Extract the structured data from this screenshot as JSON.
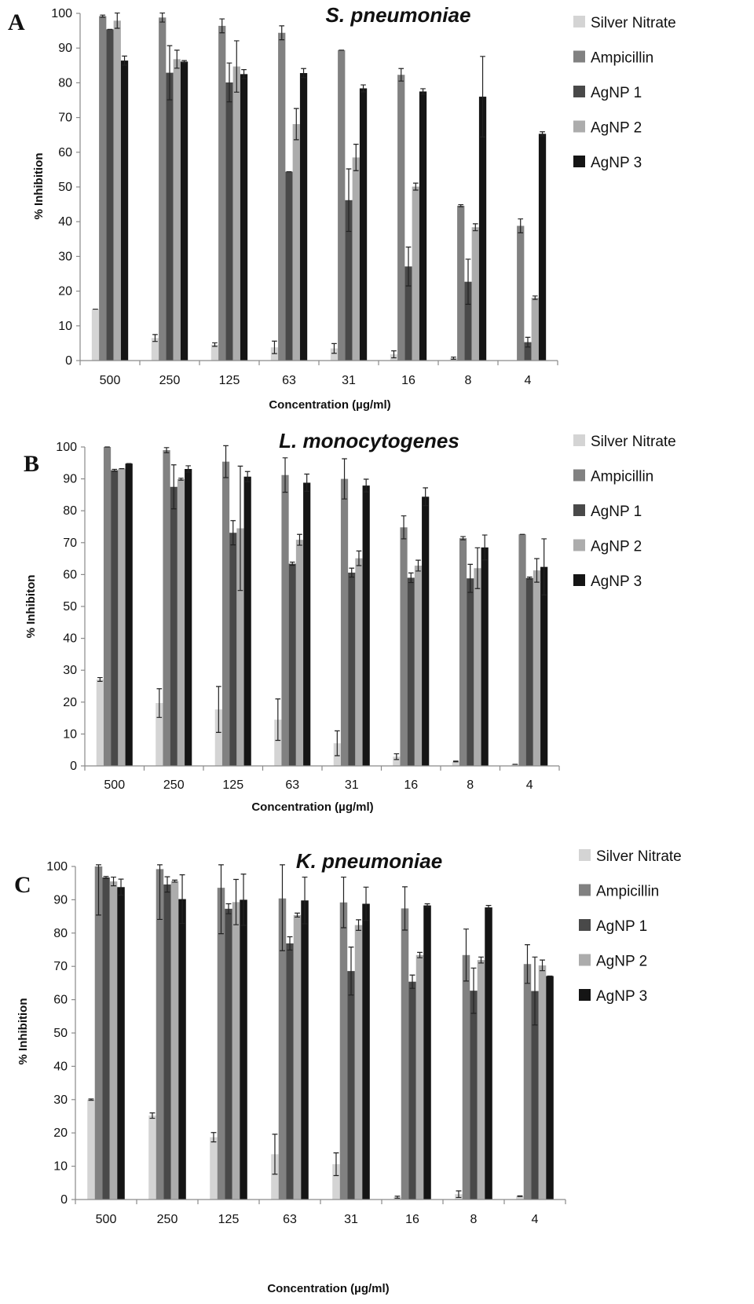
{
  "chart_data": [
    {
      "type": "bar",
      "panel": "A",
      "title": "S. pneumoniae",
      "xlabel": "Concentration (µg/ml)",
      "ylabel": "% Inhibition",
      "ylim": [
        0,
        100
      ],
      "yticks": [
        0,
        10,
        20,
        30,
        40,
        50,
        60,
        70,
        80,
        90,
        100
      ],
      "categories": [
        "500",
        "250",
        "125",
        "63",
        "31",
        "16",
        "8",
        "4"
      ],
      "legend_position": "right",
      "series": [
        {
          "name": "Silver Nitrate",
          "color": "#d4d4d4",
          "values": [
            14.8,
            6.5,
            4.6,
            3.8,
            3.5,
            1.8,
            0.7,
            0
          ],
          "errors": [
            0,
            1,
            0.5,
            1.8,
            1.4,
            1,
            0.3,
            0
          ]
        },
        {
          "name": "Ampicillin",
          "color": "#818181",
          "values": [
            99.2,
            98.8,
            96.4,
            94.4,
            89.4,
            82.3,
            44.6,
            38.8
          ],
          "errors": [
            0.3,
            1.3,
            2,
            2,
            0,
            1.8,
            0.3,
            2
          ]
        },
        {
          "name": "AgNP 1",
          "color": "#494949",
          "values": [
            95.4,
            82.9,
            80.1,
            54.4,
            46.2,
            27.1,
            22.7,
            5.3
          ],
          "errors": [
            0,
            7.8,
            5.6,
            0,
            9,
            5.6,
            6.5,
            1.4
          ]
        },
        {
          "name": "AgNP 2",
          "color": "#acacac",
          "values": [
            97.9,
            86.8,
            84.7,
            68.1,
            58.5,
            50.1,
            38.4,
            18.1
          ],
          "errors": [
            2.2,
            2.6,
            7.4,
            4.5,
            3.8,
            1,
            1,
            0.5
          ]
        },
        {
          "name": "AgNP 3",
          "color": "#151515",
          "values": [
            86.4,
            86.1,
            82.5,
            82.8,
            78.4,
            77.5,
            76,
            65.3
          ],
          "errors": [
            1.3,
            0.3,
            1.3,
            1.3,
            1,
            0.8,
            11.6,
            0.6
          ]
        }
      ]
    },
    {
      "type": "bar",
      "panel": "B",
      "title": "L. monocytogenes",
      "xlabel": "Concentration (µg/ml)",
      "ylabel": "% Inhibiton",
      "ylim": [
        0,
        100
      ],
      "yticks": [
        0,
        10,
        20,
        30,
        40,
        50,
        60,
        70,
        80,
        90,
        100
      ],
      "categories": [
        "500",
        "250",
        "125",
        "63",
        "31",
        "16",
        "8",
        "4"
      ],
      "legend_position": "right",
      "series": [
        {
          "name": "Silver Nitrate",
          "color": "#d4d4d4",
          "values": [
            27.1,
            19.7,
            17.7,
            14.5,
            7.1,
            2.9,
            1.4,
            0.5
          ],
          "errors": [
            0.6,
            4.5,
            7.2,
            6.5,
            3.9,
            0.9,
            0.1,
            0
          ]
        },
        {
          "name": "Ampicillin",
          "color": "#818181",
          "values": [
            100,
            99,
            95.4,
            91.2,
            90,
            74.8,
            71.4,
            72.6
          ],
          "errors": [
            0,
            0.8,
            5,
            5.4,
            6.3,
            3.6,
            0.5,
            0
          ]
        },
        {
          "name": "AgNP 1",
          "color": "#494949",
          "values": [
            92.7,
            87.5,
            73.1,
            63.4,
            60.6,
            59,
            58.8,
            58.9
          ],
          "errors": [
            0.3,
            6.9,
            3.8,
            0.5,
            1.4,
            1.5,
            4.4,
            0.3
          ]
        },
        {
          "name": "AgNP 2",
          "color": "#acacac",
          "values": [
            93.2,
            89.9,
            74.5,
            70.9,
            65.1,
            62.8,
            62,
            61.3
          ],
          "errors": [
            0,
            0.3,
            19.5,
            1.7,
            2.3,
            1.7,
            6.4,
            3.7
          ]
        },
        {
          "name": "AgNP 3",
          "color": "#151515",
          "values": [
            94.8,
            93.1,
            90.7,
            88.8,
            87.9,
            84.4,
            68.5,
            62.4
          ],
          "errors": [
            0,
            1,
            1.6,
            2.7,
            2,
            2.8,
            3.9,
            8.8
          ]
        }
      ]
    },
    {
      "type": "bar",
      "panel": "C",
      "title": "K. pneumoniae",
      "xlabel": "Concentration (µg/ml)",
      "ylabel": "% Inhibition",
      "ylim": [
        0,
        100
      ],
      "yticks": [
        0,
        10,
        20,
        30,
        40,
        50,
        60,
        70,
        80,
        90,
        100
      ],
      "categories": [
        "500",
        "250",
        "125",
        "63",
        "31",
        "16",
        "8",
        "4"
      ],
      "legend_position": "right",
      "series": [
        {
          "name": "Silver Nitrate",
          "color": "#d4d4d4",
          "values": [
            30,
            25.2,
            18.7,
            13.6,
            10.6,
            0.7,
            1.6,
            1
          ],
          "errors": [
            0.2,
            0.8,
            1.4,
            6,
            3.4,
            0.3,
            1,
            0.1
          ]
        },
        {
          "name": "Ampicillin",
          "color": "#818181",
          "values": [
            100,
            99.2,
            93.6,
            90.4,
            89.2,
            87.4,
            73.4,
            70.7
          ],
          "errors": [
            14.6,
            15.1,
            13.8,
            15.7,
            7.6,
            6.5,
            7.8,
            5.8
          ]
        },
        {
          "name": "AgNP 1",
          "color": "#494949",
          "values": [
            96.7,
            94.6,
            87.3,
            76.9,
            68.6,
            65.4,
            62.7,
            62.6
          ],
          "errors": [
            0.3,
            2.3,
            1.5,
            2,
            7.2,
            2,
            6.8,
            10.2
          ]
        },
        {
          "name": "AgNP 2",
          "color": "#acacac",
          "values": [
            95.5,
            95.6,
            89.3,
            85.4,
            82.4,
            73.4,
            71.9,
            70.3
          ],
          "errors": [
            1.3,
            0.3,
            6.8,
            0.6,
            1.6,
            0.8,
            0.9,
            1.6
          ]
        },
        {
          "name": "AgNP 3",
          "color": "#151515",
          "values": [
            93.8,
            90.2,
            90,
            89.8,
            88.8,
            88.3,
            87.7,
            67.1
          ],
          "errors": [
            2.4,
            7.3,
            7.7,
            7,
            5,
            0.5,
            0.6,
            0
          ]
        }
      ]
    }
  ]
}
